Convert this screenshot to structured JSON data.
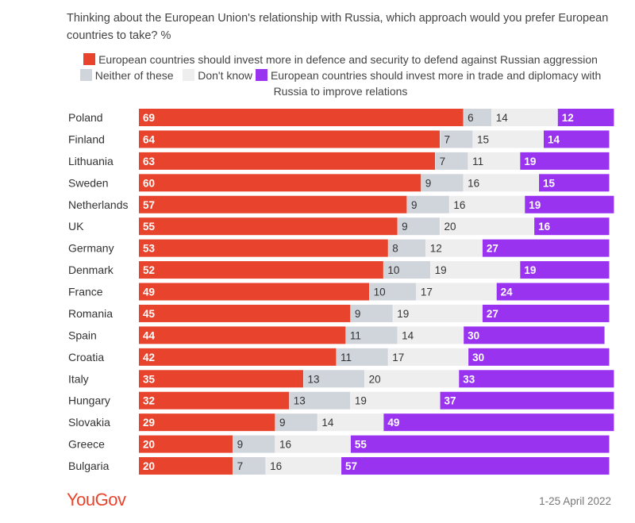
{
  "chart_data": {
    "type": "bar",
    "stacked": true,
    "orientation": "horizontal",
    "title": "Thinking about the European Union's relationship with Russia, which approach would you prefer European countries to take? %",
    "categories": [
      "Poland",
      "Finland",
      "Lithuania",
      "Sweden",
      "Netherlands",
      "UK",
      "Germany",
      "Denmark",
      "France",
      "Romania",
      "Spain",
      "Croatia",
      "Italy",
      "Hungary",
      "Slovakia",
      "Greece",
      "Bulgaria"
    ],
    "series": [
      {
        "name": "European countries should invest more in defence and security to defend against Russian aggression",
        "color": "#e8432c",
        "values": [
          69,
          64,
          63,
          60,
          57,
          55,
          53,
          52,
          49,
          45,
          44,
          42,
          35,
          32,
          29,
          20,
          20
        ]
      },
      {
        "name": "Neither of these",
        "color": "#d0d4db",
        "values": [
          6,
          7,
          7,
          9,
          9,
          9,
          8,
          10,
          10,
          9,
          11,
          11,
          13,
          13,
          9,
          9,
          7
        ]
      },
      {
        "name": "Don't know",
        "color": "#eeeeee",
        "values": [
          14,
          15,
          11,
          16,
          16,
          20,
          12,
          19,
          17,
          19,
          14,
          17,
          20,
          19,
          14,
          16,
          16
        ]
      },
      {
        "name": "European countries should invest more in trade and diplomacy with Russia to improve relations",
        "color": "#9a33f0",
        "values": [
          12,
          14,
          19,
          15,
          19,
          16,
          27,
          19,
          24,
          27,
          30,
          30,
          33,
          37,
          49,
          55,
          57
        ]
      }
    ],
    "xlim": [
      0,
      100
    ],
    "legend_position": "top",
    "grid": false
  },
  "footer": {
    "logo": "YouGov",
    "date": "1-25 April 2022"
  }
}
